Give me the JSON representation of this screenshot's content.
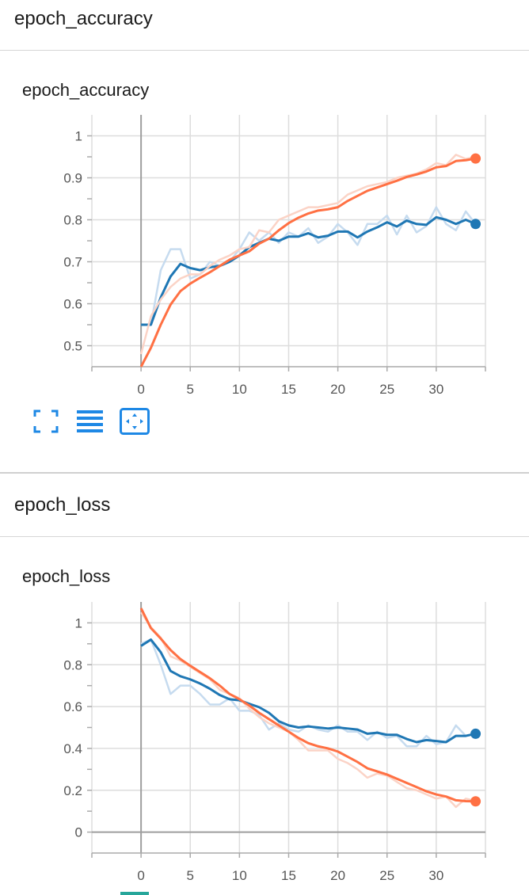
{
  "sections": [
    {
      "header": "epoch_accuracy",
      "card_title": "epoch_accuracy",
      "chart_data": {
        "type": "line",
        "title": "epoch_accuracy",
        "xlim": [
          -5,
          35
        ],
        "ylim": [
          0.45,
          1.05
        ],
        "x_ticks": [
          0,
          5,
          10,
          15,
          20,
          25,
          30
        ],
        "y_ticks": [
          0.5,
          0.6,
          0.7,
          0.8,
          0.9,
          1
        ],
        "x_tick_labels": [
          "0",
          "5",
          "10",
          "15",
          "20",
          "25",
          "30"
        ],
        "y_tick_labels": [
          "0.5",
          "0.6",
          "0.7",
          "0.8",
          "0.9",
          "1"
        ],
        "grid": true,
        "smoothed": true,
        "series": [
          {
            "color": "#1f77b4",
            "raw_color": "#c6dbef",
            "x": [
              0,
              1,
              2,
              3,
              4,
              5,
              6,
              7,
              8,
              9,
              10,
              11,
              12,
              13,
              14,
              15,
              16,
              17,
              18,
              19,
              20,
              21,
              22,
              23,
              24,
              25,
              26,
              27,
              28,
              29,
              30,
              31,
              32,
              33,
              34
            ],
            "raw": [
              0.55,
              0.55,
              0.68,
              0.73,
              0.73,
              0.66,
              0.67,
              0.7,
              0.69,
              0.7,
              0.73,
              0.77,
              0.75,
              0.77,
              0.745,
              0.77,
              0.76,
              0.78,
              0.745,
              0.76,
              0.79,
              0.77,
              0.74,
              0.79,
              0.79,
              0.81,
              0.765,
              0.81,
              0.77,
              0.785,
              0.83,
              0.79,
              0.775,
              0.82,
              0.79
            ],
            "smoothed": [
              0.55,
              0.55,
              0.615,
              0.665,
              0.695,
              0.685,
              0.68,
              0.687,
              0.69,
              0.7,
              0.715,
              0.735,
              0.745,
              0.755,
              0.75,
              0.76,
              0.76,
              0.768,
              0.758,
              0.762,
              0.772,
              0.772,
              0.758,
              0.772,
              0.782,
              0.794,
              0.784,
              0.798,
              0.79,
              0.788,
              0.806,
              0.8,
              0.79,
              0.8,
              0.79
            ]
          },
          {
            "color": "#ff7043",
            "raw_color": "#fbd3c6",
            "x": [
              0,
              1,
              2,
              3,
              4,
              5,
              6,
              7,
              8,
              9,
              10,
              11,
              12,
              13,
              14,
              15,
              16,
              17,
              18,
              19,
              20,
              21,
              22,
              23,
              24,
              25,
              26,
              27,
              28,
              29,
              30,
              31,
              32,
              33,
              34
            ],
            "raw": [
              0.48,
              0.57,
              0.61,
              0.64,
              0.66,
              0.67,
              0.67,
              0.69,
              0.705,
              0.715,
              0.73,
              0.735,
              0.775,
              0.77,
              0.8,
              0.81,
              0.82,
              0.83,
              0.83,
              0.835,
              0.84,
              0.86,
              0.87,
              0.88,
              0.885,
              0.89,
              0.9,
              0.905,
              0.91,
              0.92,
              0.935,
              0.93,
              0.955,
              0.945,
              0.95
            ],
            "smoothed": [
              0.45,
              0.495,
              0.55,
              0.598,
              0.63,
              0.648,
              0.662,
              0.675,
              0.69,
              0.705,
              0.715,
              0.725,
              0.743,
              0.755,
              0.775,
              0.792,
              0.805,
              0.815,
              0.822,
              0.825,
              0.83,
              0.845,
              0.857,
              0.869,
              0.877,
              0.885,
              0.893,
              0.902,
              0.908,
              0.915,
              0.925,
              0.928,
              0.94,
              0.942,
              0.946
            ]
          }
        ]
      }
    },
    {
      "header": "epoch_loss",
      "card_title": "epoch_loss",
      "chart_data": {
        "type": "line",
        "title": "epoch_loss",
        "xlim": [
          -5,
          35
        ],
        "ylim": [
          -0.1,
          1.1
        ],
        "x_ticks": [
          0,
          5,
          10,
          15,
          20,
          25,
          30
        ],
        "y_ticks": [
          0,
          0.2,
          0.4,
          0.6,
          0.8,
          1
        ],
        "x_tick_labels": [
          "0",
          "5",
          "10",
          "15",
          "20",
          "25",
          "30"
        ],
        "y_tick_labels": [
          "0",
          "0.2",
          "0.4",
          "0.6",
          "0.8",
          "1"
        ],
        "grid": true,
        "smoothed": true,
        "series": [
          {
            "color": "#1f77b4",
            "raw_color": "#c6dbef",
            "x": [
              0,
              1,
              2,
              3,
              4,
              5,
              6,
              7,
              8,
              9,
              10,
              11,
              12,
              13,
              14,
              15,
              16,
              17,
              18,
              19,
              20,
              21,
              22,
              23,
              24,
              25,
              26,
              27,
              28,
              29,
              30,
              31,
              32,
              33,
              34
            ],
            "raw": [
              0.9,
              0.92,
              0.8,
              0.66,
              0.7,
              0.7,
              0.66,
              0.61,
              0.61,
              0.64,
              0.58,
              0.58,
              0.56,
              0.49,
              0.52,
              0.49,
              0.48,
              0.51,
              0.49,
              0.48,
              0.51,
              0.48,
              0.48,
              0.44,
              0.48,
              0.45,
              0.46,
              0.41,
              0.41,
              0.46,
              0.42,
              0.43,
              0.51,
              0.46,
              0.47
            ],
            "smoothed": [
              0.89,
              0.92,
              0.86,
              0.77,
              0.745,
              0.73,
              0.71,
              0.685,
              0.655,
              0.635,
              0.63,
              0.613,
              0.597,
              0.57,
              0.53,
              0.51,
              0.5,
              0.505,
              0.5,
              0.495,
              0.5,
              0.495,
              0.49,
              0.47,
              0.475,
              0.465,
              0.465,
              0.445,
              0.43,
              0.44,
              0.435,
              0.43,
              0.46,
              0.46,
              0.47
            ]
          },
          {
            "color": "#ff7043",
            "raw_color": "#fbd3c6",
            "x": [
              0,
              1,
              2,
              3,
              4,
              5,
              6,
              7,
              8,
              9,
              10,
              11,
              12,
              13,
              14,
              15,
              16,
              17,
              18,
              19,
              20,
              21,
              22,
              23,
              24,
              25,
              26,
              27,
              28,
              29,
              30,
              31,
              32,
              33,
              34
            ],
            "raw": [
              1.05,
              0.98,
              0.93,
              0.84,
              0.82,
              0.79,
              0.76,
              0.73,
              0.68,
              0.66,
              0.64,
              0.59,
              0.55,
              0.52,
              0.5,
              0.48,
              0.44,
              0.39,
              0.39,
              0.39,
              0.35,
              0.33,
              0.3,
              0.26,
              0.28,
              0.27,
              0.24,
              0.21,
              0.2,
              0.18,
              0.16,
              0.17,
              0.12,
              0.16,
              0.15
            ],
            "smoothed": [
              1.07,
              0.975,
              0.925,
              0.87,
              0.827,
              0.795,
              0.765,
              0.735,
              0.7,
              0.66,
              0.635,
              0.605,
              0.57,
              0.54,
              0.51,
              0.48,
              0.45,
              0.425,
              0.41,
              0.4,
              0.385,
              0.36,
              0.335,
              0.305,
              0.29,
              0.275,
              0.255,
              0.235,
              0.215,
              0.195,
              0.18,
              0.17,
              0.152,
              0.148,
              0.147
            ]
          }
        ]
      }
    }
  ],
  "toolbar": {
    "fullscreen_icon": "fullscreen-icon",
    "lines_icon": "lines-icon",
    "fit_icon": "fit-domain-icon"
  }
}
